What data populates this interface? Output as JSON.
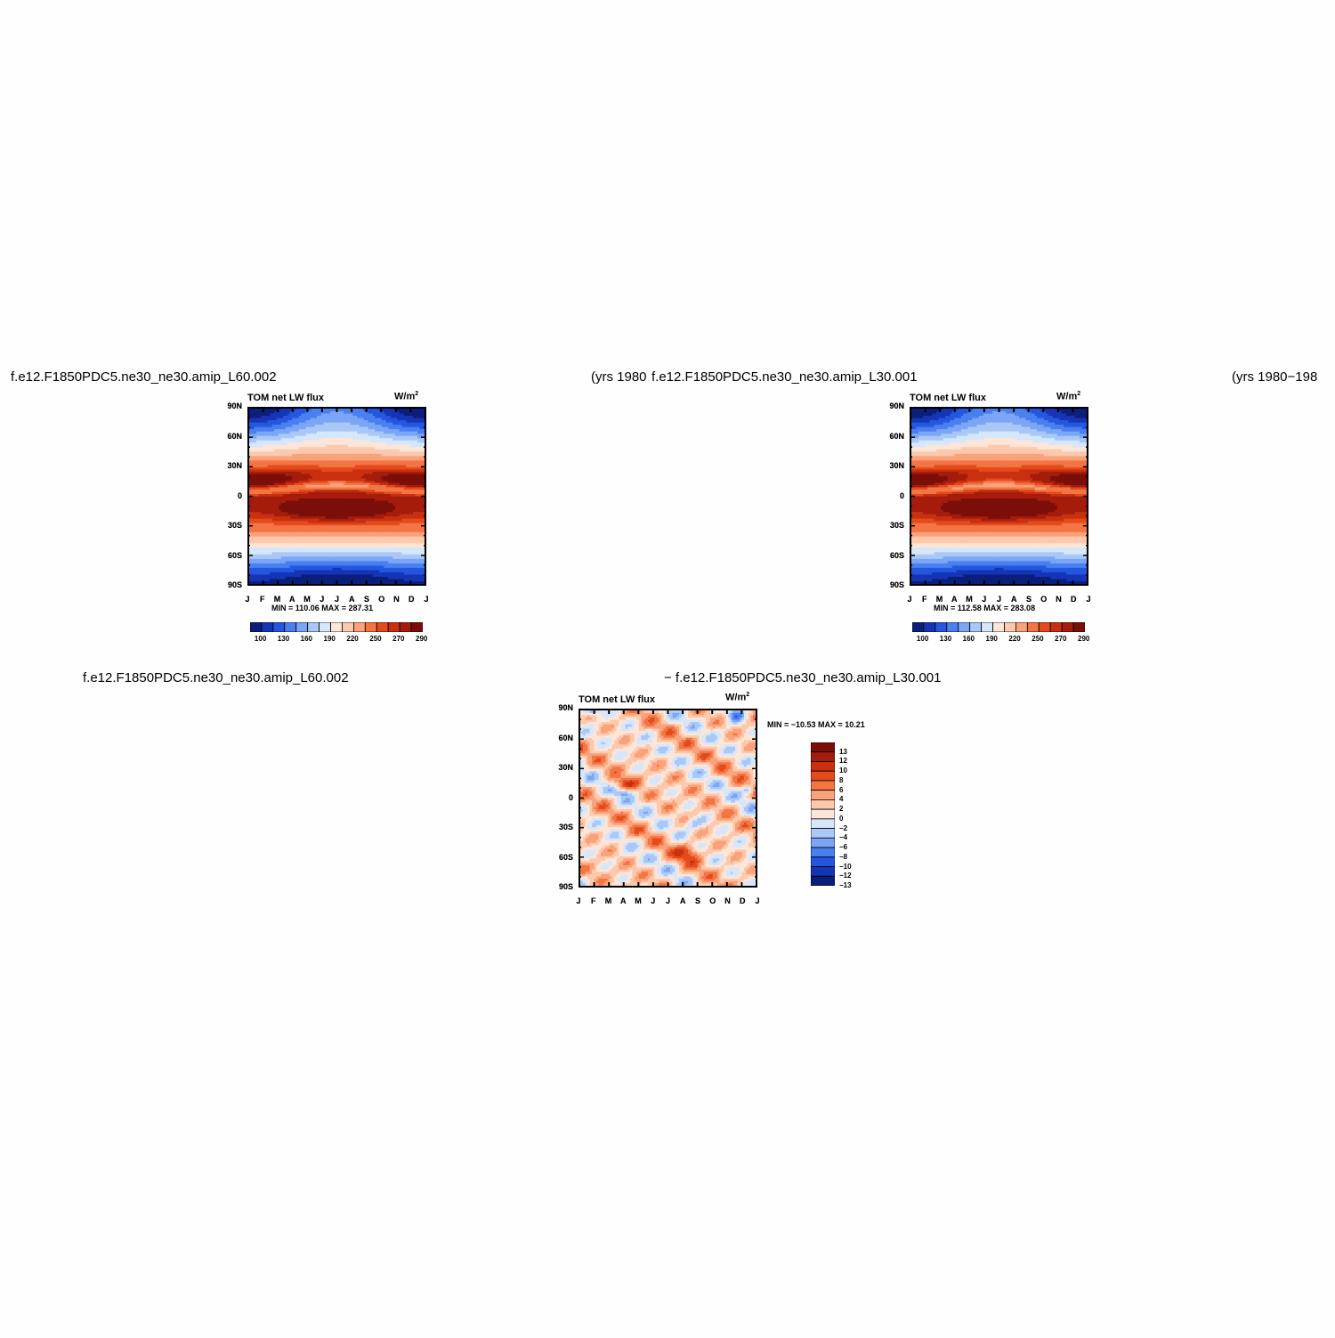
{
  "panels": [
    {
      "title_left": "f.e12.F1850PDC5.ne30_ne30.amip_L60.002",
      "title_right": "(yrs 1980",
      "variable": "TOM net LW flux",
      "units": "W/m",
      "units_sup": "2",
      "minmax": "MIN = 110.06 MAX = 287.31"
    },
    {
      "title_left": "f.e12.F1850PDC5.ne30_ne30.amip_L30.001",
      "title_right": "(yrs 1980−198",
      "variable": "TOM net LW flux",
      "units": "W/m",
      "units_sup": "2",
      "minmax": "MIN = 112.58 MAX = 283.08"
    },
    {
      "title_left": "f.e12.F1850PDC5.ne30_ne30.amip_L60.002",
      "title_right": "− f.e12.F1850PDC5.ne30_ne30.amip_L30.001",
      "variable": "TOM net LW flux",
      "units": "W/m",
      "units_sup": "2",
      "minmax": "MIN = −10.53 MAX =  10.21"
    }
  ],
  "chart_data": [
    {
      "type": "heatmap",
      "x_ticks": [
        "J",
        "F",
        "M",
        "A",
        "M",
        "J",
        "J",
        "A",
        "S",
        "O",
        "N",
        "D",
        "J"
      ],
      "y_ticks": [
        "90N",
        "60N",
        "30N",
        "0",
        "30S",
        "60S",
        "90S"
      ],
      "colorbar_labels": [
        "100",
        "130",
        "160",
        "190",
        "220",
        "250",
        "270",
        "290"
      ],
      "colorbar_colors": [
        "#0a1f7a",
        "#1535b5",
        "#2456e0",
        "#4a7ff0",
        "#7aa6f5",
        "#a9c8f7",
        "#d6e6fb",
        "#fde6d8",
        "#fcc9ac",
        "#f9a27b",
        "#f47544",
        "#e44b1c",
        "#c93010",
        "#a51c0d",
        "#7c0e0a"
      ],
      "min": 110.06,
      "max": 287.31
    },
    {
      "type": "heatmap",
      "x_ticks": [
        "J",
        "F",
        "M",
        "A",
        "M",
        "J",
        "J",
        "A",
        "S",
        "O",
        "N",
        "D",
        "J"
      ],
      "y_ticks": [
        "90N",
        "60N",
        "30N",
        "0",
        "30S",
        "60S",
        "90S"
      ],
      "colorbar_labels": [
        "100",
        "130",
        "160",
        "190",
        "220",
        "250",
        "270",
        "290"
      ],
      "colorbar_colors": [
        "#0a1f7a",
        "#1535b5",
        "#2456e0",
        "#4a7ff0",
        "#7aa6f5",
        "#a9c8f7",
        "#d6e6fb",
        "#fde6d8",
        "#fcc9ac",
        "#f9a27b",
        "#f47544",
        "#e44b1c",
        "#c93010",
        "#a51c0d",
        "#7c0e0a"
      ],
      "min": 112.58,
      "max": 283.08
    },
    {
      "type": "heatmap",
      "x_ticks": [
        "J",
        "F",
        "M",
        "A",
        "M",
        "J",
        "J",
        "A",
        "S",
        "O",
        "N",
        "D",
        "J"
      ],
      "y_ticks": [
        "90N",
        "60N",
        "30N",
        "0",
        "30S",
        "60S",
        "90S"
      ],
      "colorbar_labels": [
        "13",
        "12",
        "10",
        "8",
        "6",
        "4",
        "2",
        "0",
        "−2",
        "−4",
        "−6",
        "−8",
        "−10",
        "−12",
        "−13"
      ],
      "colorbar_colors": [
        "#7c0e0a",
        "#a51c0d",
        "#c93010",
        "#e44b1c",
        "#f47544",
        "#f9a27b",
        "#fcc9ac",
        "#fde6d8",
        "#d6e6fb",
        "#a9c8f7",
        "#7aa6f5",
        "#4a7ff0",
        "#2456e0",
        "#1535b5",
        "#0a1f7a"
      ],
      "min": -10.53,
      "max": 10.21
    }
  ]
}
